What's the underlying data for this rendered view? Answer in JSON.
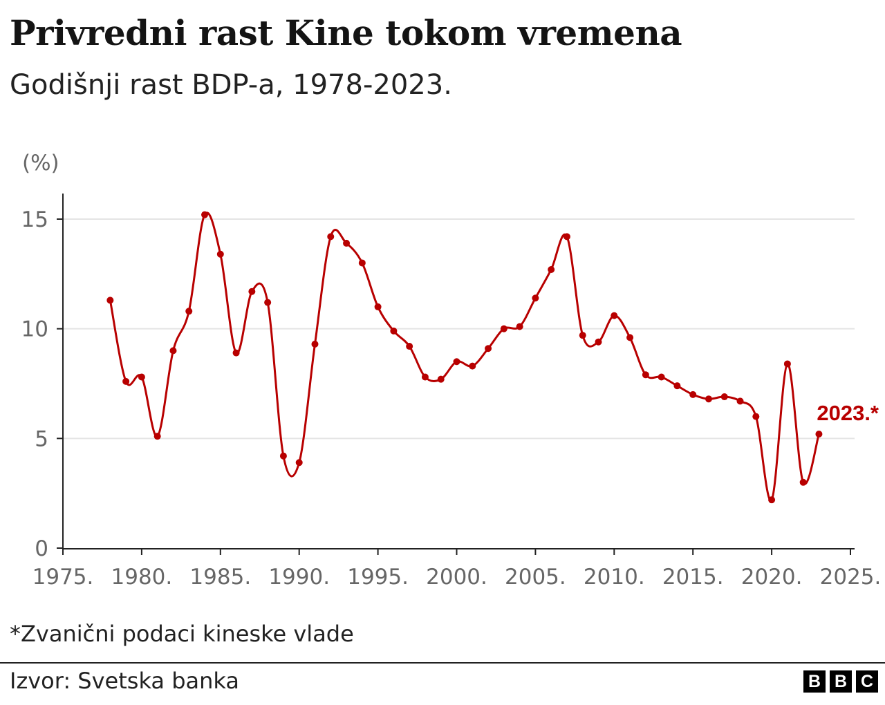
{
  "header": {
    "title": "Privredni rast Kine tokom vremena",
    "subtitle": "Godišnji rast BDP-a, 1978-2023."
  },
  "footer": {
    "note": "*Zvanični podaci kineske vlade",
    "source": "Izvor: Svetska banka",
    "logo": [
      "B",
      "B",
      "C"
    ]
  },
  "chart_data": {
    "type": "line",
    "title": "Privredni rast Kine tokom vremena",
    "subtitle": "Godišnji rast BDP-a, 1978-2023.",
    "ylabel": "(%)",
    "xlabel": "",
    "xlim": [
      1975,
      2025
    ],
    "ylim": [
      0,
      16
    ],
    "x_ticks": [
      1975,
      1980,
      1985,
      1990,
      1995,
      2000,
      2005,
      2010,
      2015,
      2020,
      2025
    ],
    "x_tick_labels": [
      "1975.",
      "1980.",
      "1985.",
      "1990.",
      "1995.",
      "2000.",
      "2005.",
      "2010.",
      "2015.",
      "2020.",
      "2025."
    ],
    "y_ticks": [
      0,
      5,
      10,
      15
    ],
    "y_tick_labels": [
      "0",
      "5",
      "10",
      "15"
    ],
    "grid": "horizontal",
    "color": "#b80000",
    "annotation": {
      "text": "2023.*",
      "x": 2023
    },
    "x": [
      1978,
      1979,
      1980,
      1981,
      1982,
      1983,
      1984,
      1985,
      1986,
      1987,
      1988,
      1989,
      1990,
      1991,
      1992,
      1993,
      1994,
      1995,
      1996,
      1997,
      1998,
      1999,
      2000,
      2001,
      2002,
      2003,
      2004,
      2005,
      2006,
      2007,
      2008,
      2009,
      2010,
      2011,
      2012,
      2013,
      2014,
      2015,
      2016,
      2017,
      2018,
      2019,
      2020,
      2021,
      2022,
      2023
    ],
    "values": [
      11.3,
      7.6,
      7.8,
      5.1,
      9.0,
      10.8,
      15.2,
      13.4,
      8.9,
      11.7,
      11.2,
      4.2,
      3.9,
      9.3,
      14.2,
      13.9,
      13.0,
      11.0,
      9.9,
      9.2,
      7.8,
      7.7,
      8.5,
      8.3,
      9.1,
      10.0,
      10.1,
      11.4,
      12.7,
      14.2,
      9.7,
      9.4,
      10.6,
      9.6,
      7.9,
      7.8,
      7.4,
      7.0,
      6.8,
      6.9,
      6.7,
      6.0,
      2.2,
      8.4,
      3.0,
      5.2
    ]
  }
}
